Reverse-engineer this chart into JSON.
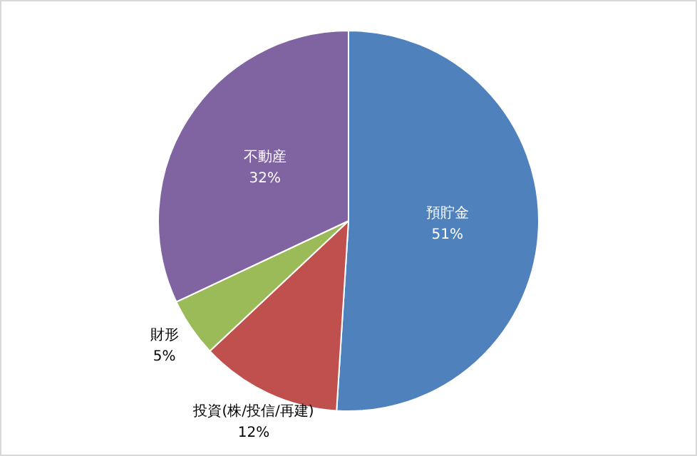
{
  "chart_data": {
    "type": "pie",
    "categories": [
      "預貯金",
      "投資(株/投信/再建)",
      "財形",
      "不動産"
    ],
    "values": [
      51,
      12,
      5,
      32
    ],
    "colors": [
      "#4f81bd",
      "#c0504d",
      "#9bbb59",
      "#8064a2"
    ],
    "value_labels": [
      "51%",
      "12%",
      "5%",
      "32%"
    ],
    "legend": false
  }
}
